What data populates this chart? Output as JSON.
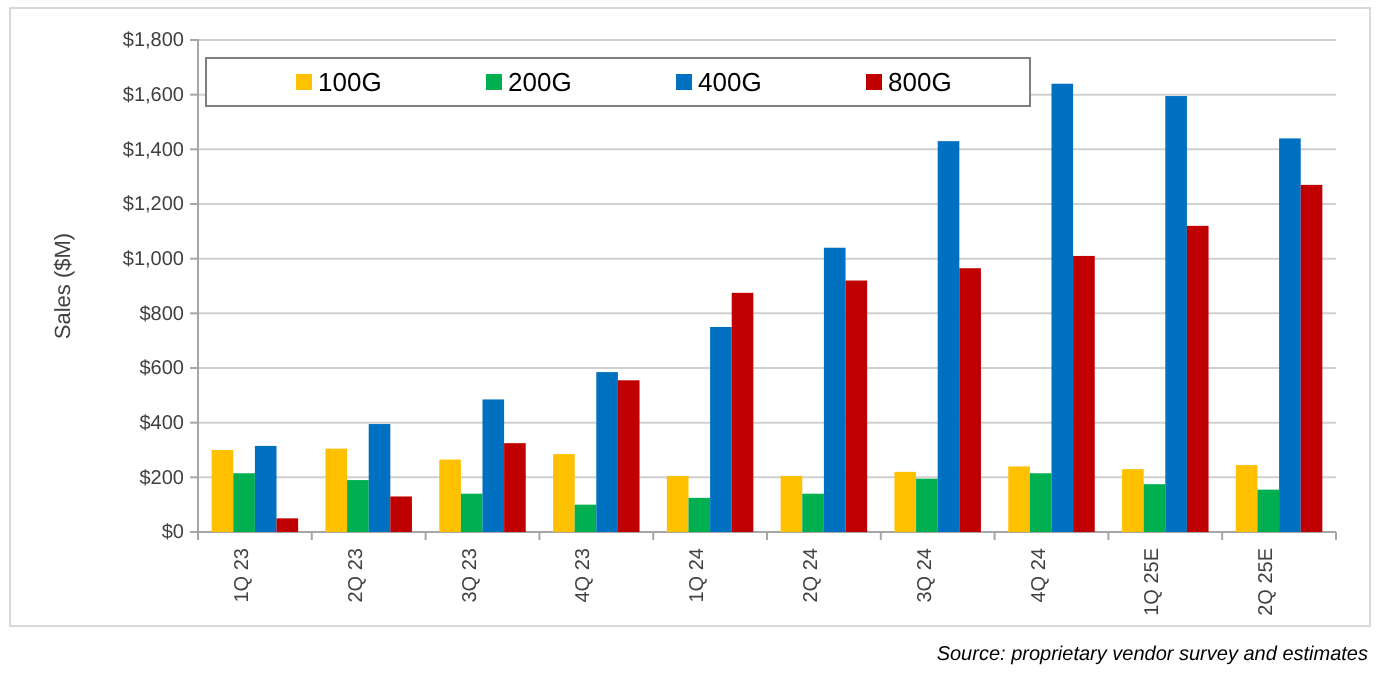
{
  "chart_data": {
    "type": "bar",
    "ylabel": "Sales ($M)",
    "categories": [
      "1Q 23",
      "2Q 23",
      "3Q 23",
      "4Q 23",
      "1Q 24",
      "2Q 24",
      "3Q 24",
      "4Q 24",
      "1Q 25E",
      "2Q 25E"
    ],
    "series": [
      {
        "name": "100G",
        "color": "#ffc000",
        "values": [
          300,
          305,
          265,
          285,
          205,
          205,
          220,
          240,
          230,
          245
        ]
      },
      {
        "name": "200G",
        "color": "#00b050",
        "values": [
          215,
          190,
          140,
          100,
          125,
          140,
          195,
          215,
          175,
          155
        ]
      },
      {
        "name": "400G",
        "color": "#0070c0",
        "values": [
          315,
          395,
          485,
          585,
          750,
          1040,
          1430,
          1640,
          1595,
          1440
        ]
      },
      {
        "name": "800G",
        "color": "#c00000",
        "values": [
          50,
          130,
          325,
          555,
          875,
          920,
          965,
          1010,
          1120,
          1270
        ]
      }
    ],
    "ylim": [
      0,
      1800
    ],
    "yticks": [
      {
        "value": 0,
        "label": "$0"
      },
      {
        "value": 200,
        "label": "$200"
      },
      {
        "value": 400,
        "label": "$400"
      },
      {
        "value": 600,
        "label": "$600"
      },
      {
        "value": 800,
        "label": "$800"
      },
      {
        "value": 1000,
        "label": "$1,000"
      },
      {
        "value": 1200,
        "label": "$1,200"
      },
      {
        "value": 1400,
        "label": "$1,400"
      },
      {
        "value": 1600,
        "label": "$1,600"
      },
      {
        "value": 1800,
        "label": "$1,800"
      }
    ],
    "grid": "y",
    "legend": "top",
    "annotations": [
      "Source: proprietary vendor survey and estimates"
    ]
  }
}
